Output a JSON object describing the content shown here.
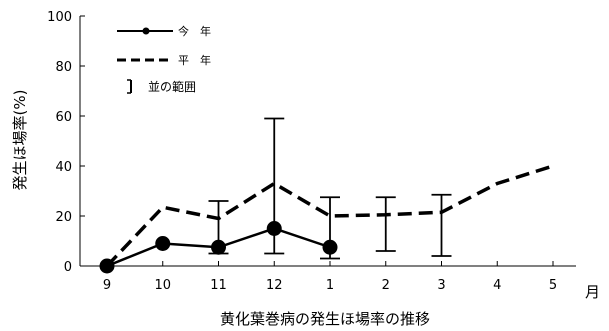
{
  "chart_data": {
    "type": "line",
    "title": "",
    "xlabel": "黄化葉巻病の発生ほ場率の推移",
    "ylabel": "発生ほ場率(%)",
    "x_unit": "月",
    "categories": [
      "9",
      "10",
      "11",
      "12",
      "1",
      "2",
      "3",
      "4",
      "5"
    ],
    "ylim": [
      0,
      100
    ],
    "yticks": [
      0,
      20,
      40,
      60,
      80,
      100
    ],
    "grid": false,
    "legend_position": "top-left",
    "series": [
      {
        "name": "今　年",
        "style": "solid-with-markers",
        "color": "#000000",
        "values": [
          0,
          9,
          7.5,
          15,
          7.5,
          null,
          null,
          null,
          null
        ]
      },
      {
        "name": "平　年",
        "style": "dashed",
        "color": "#000000",
        "values": [
          0,
          23.5,
          19,
          33,
          20,
          20.5,
          21.5,
          33,
          40
        ]
      }
    ],
    "range_bars": {
      "name": "並の範囲",
      "ranges": [
        null,
        null,
        [
          5,
          26
        ],
        [
          5,
          59
        ],
        [
          3,
          27.5
        ],
        [
          6,
          27.5
        ],
        [
          4,
          28.5
        ],
        null,
        null
      ]
    }
  }
}
